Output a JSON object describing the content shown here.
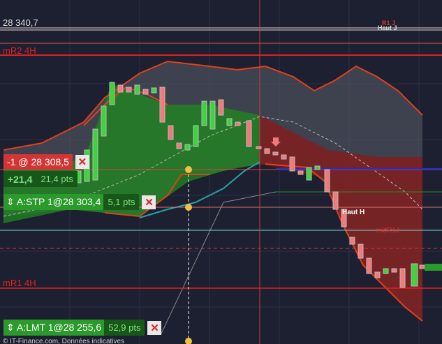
{
  "header": {
    "price_top": "28 340,7",
    "level_r1j": "R1 J",
    "level_haut_j": "Haut J"
  },
  "levels": {
    "mr2_4h": "mR2 4H",
    "haut_h": "Haut H",
    "mid_r1j": "midR1J",
    "mr1_4h": "mR1 4H"
  },
  "position": {
    "label": "-1 @ 28 308,5",
    "pnl": "+21,4",
    "pnl_pts": "21,4 pts"
  },
  "orders": [
    {
      "label": "A:STP 1@28 303,4",
      "pts": "5,1 pts"
    },
    {
      "label": "A:LMT 1@28 255,6",
      "pts": "52,9 pts"
    }
  ],
  "footer": "© IT-Finance.com, Données indicatives"
}
